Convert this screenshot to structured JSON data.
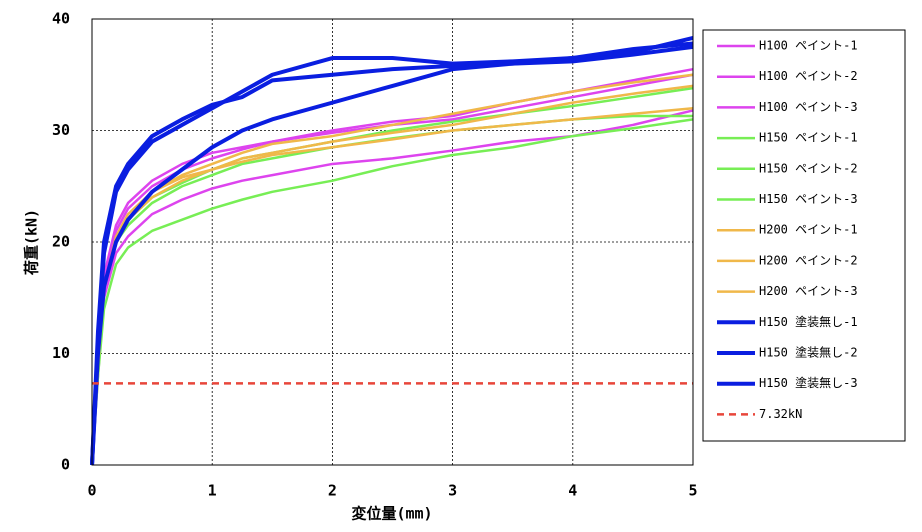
{
  "chart_data": {
    "type": "line",
    "xlabel": "変位量(mm)",
    "ylabel": "荷重(kN)",
    "x": [
      0,
      0.05,
      0.1,
      0.2,
      0.3,
      0.5,
      0.75,
      1,
      1.25,
      1.5,
      2,
      2.5,
      3,
      3.5,
      4,
      4.5,
      5
    ],
    "xlim": [
      0,
      5
    ],
    "xticks": [
      0,
      1,
      2,
      3,
      4,
      5
    ],
    "ylim": [
      0,
      40
    ],
    "yticks": [
      0,
      10,
      20,
      30,
      40
    ],
    "grid": true,
    "legend": "right",
    "series": [
      {
        "name": "H100 ペイント-1",
        "color": "#dd44ee",
        "values": [
          0,
          9,
          17,
          21,
          23,
          25,
          26.5,
          27.5,
          28.3,
          29,
          30,
          30.8,
          31.3,
          32.5,
          33.5,
          34.5,
          35.5
        ]
      },
      {
        "name": "H100 ペイント-2",
        "color": "#dd44ee",
        "values": [
          0,
          9,
          17,
          21.5,
          23.5,
          25.5,
          27,
          28,
          28.5,
          29,
          29.8,
          30.5,
          31,
          32,
          33,
          34,
          35
        ]
      },
      {
        "name": "H100 ペイント-3",
        "color": "#dd44ee",
        "values": [
          0,
          8,
          15,
          19,
          20.5,
          22.5,
          23.8,
          24.8,
          25.5,
          26,
          27,
          27.5,
          28.2,
          29,
          29.5,
          30.5,
          31.8
        ]
      },
      {
        "name": "H150 ペイント-1",
        "color": "#77ee55",
        "values": [
          0,
          8,
          14,
          18,
          19.5,
          21,
          22,
          23,
          23.8,
          24.5,
          25.5,
          26.8,
          27.8,
          28.5,
          29.5,
          30.2,
          31
        ]
      },
      {
        "name": "H150 ペイント-2",
        "color": "#77ee55",
        "values": [
          0,
          9,
          16,
          20,
          21.5,
          23.5,
          25,
          26,
          27,
          27.5,
          28.5,
          29.3,
          30,
          30.5,
          31,
          31.3,
          31.3
        ]
      },
      {
        "name": "H150 ペイント-3",
        "color": "#77ee55",
        "values": [
          0,
          9,
          16,
          20,
          22,
          24,
          25.3,
          26.5,
          27.5,
          28,
          29,
          30,
          30.8,
          31.5,
          32.2,
          33,
          33.8
        ]
      },
      {
        "name": "H200 ペイント-1",
        "color": "#f0b84a",
        "values": [
          0,
          9,
          16,
          20,
          22,
          24.5,
          26,
          27,
          28,
          28.8,
          29.5,
          30.5,
          31.5,
          32.5,
          33.5,
          34.3,
          35
        ]
      },
      {
        "name": "H200 ペイント-2",
        "color": "#f0b84a",
        "values": [
          0,
          9,
          16,
          20.5,
          22.5,
          24.5,
          25.8,
          26.5,
          27.5,
          28,
          29,
          29.8,
          30.5,
          31.5,
          32.5,
          33.3,
          34
        ]
      },
      {
        "name": "H200 ペイント-3",
        "color": "#f0b84a",
        "values": [
          0,
          9,
          16,
          20,
          22,
          24,
          25.5,
          26.5,
          27.2,
          27.8,
          28.5,
          29.2,
          30,
          30.5,
          31,
          31.5,
          32
        ]
      },
      {
        "name": "H150 塗装無し-1",
        "color": "#0a1ee0",
        "linewidth": 4,
        "values": [
          0,
          12,
          20,
          25,
          27,
          29.5,
          31,
          32.3,
          33,
          34.5,
          35,
          35.5,
          35.8,
          36,
          36.5,
          37,
          38.3
        ]
      },
      {
        "name": "H150 塗装無し-2",
        "color": "#0a1ee0",
        "linewidth": 4,
        "values": [
          0,
          11,
          19,
          24.5,
          26.5,
          29,
          30.5,
          32,
          33.5,
          35,
          36.5,
          36.5,
          36,
          36.2,
          36.5,
          37.3,
          37.8
        ]
      },
      {
        "name": "H150 塗装無し-3",
        "color": "#0a1ee0",
        "linewidth": 4,
        "values": [
          0,
          10,
          16,
          20,
          22,
          24.5,
          26.5,
          28.5,
          30,
          31,
          32.5,
          34,
          35.5,
          36,
          36.2,
          36.8,
          37.5
        ]
      },
      {
        "name": "7.32kN",
        "color": "#e8463a",
        "linestyle": "dashed",
        "values": [
          7.32,
          7.32,
          7.32,
          7.32,
          7.32,
          7.32,
          7.32,
          7.32,
          7.32,
          7.32,
          7.32,
          7.32,
          7.32,
          7.32,
          7.32,
          7.32,
          7.32
        ]
      }
    ]
  }
}
